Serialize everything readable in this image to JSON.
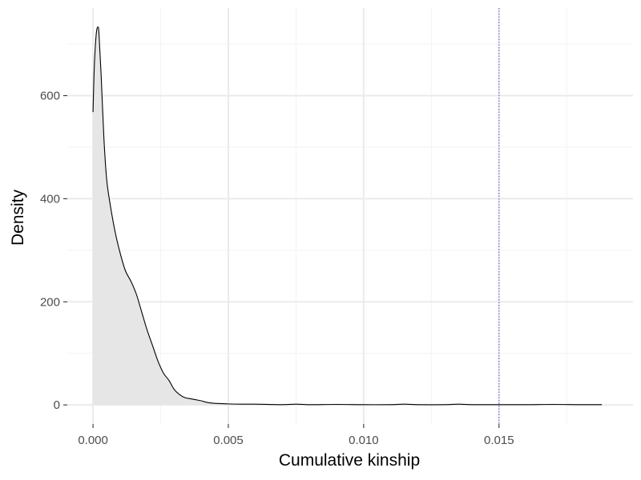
{
  "chart_data": {
    "type": "area",
    "xlabel": "Cumulative kinship",
    "ylabel": "Density",
    "xlim": [
      -0.00095,
      0.01995
    ],
    "ylim": [
      -37,
      770
    ],
    "x_ticks": [
      0.0,
      0.005,
      0.01,
      0.015
    ],
    "x_tick_labels": [
      "0.000",
      "0.005",
      "0.010",
      "0.015"
    ],
    "y_ticks": [
      0,
      200,
      400,
      600
    ],
    "y_tick_labels": [
      "0",
      "200",
      "400",
      "600"
    ],
    "grid": true,
    "reference_line": {
      "x": 0.015,
      "style": "dotted",
      "color": "#5d5dd1"
    },
    "colors": {
      "panel_background": "#ffffff",
      "grid_major": "#ebebeb",
      "grid_minor": "#f3f3f3",
      "fill": "#e6e6e6",
      "line": "#000000"
    },
    "series": [
      {
        "x": [
          0.0,
          5e-05,
          0.00012,
          0.00018,
          0.00022,
          0.0003,
          0.0004,
          0.0005,
          0.0006,
          0.0008,
          0.001,
          0.0012,
          0.0014,
          0.0016,
          0.0018,
          0.002,
          0.0022,
          0.0024,
          0.0026,
          0.0028,
          0.003,
          0.0032,
          0.0034,
          0.0036,
          0.0038,
          0.004,
          0.0042,
          0.0045,
          0.005,
          0.0055,
          0.006,
          0.007,
          0.0075,
          0.008,
          0.009,
          0.01,
          0.011,
          0.0115,
          0.012,
          0.013,
          0.0135,
          0.014,
          0.015,
          0.016,
          0.017,
          0.018,
          0.0188
        ],
        "y": [
          568,
          660,
          720,
          733,
          720,
          640,
          520,
          440,
          400,
          340,
          295,
          260,
          240,
          215,
          180,
          145,
          115,
          85,
          62,
          48,
          30,
          20,
          14,
          12,
          10,
          8,
          5,
          3,
          2,
          1.5,
          1.5,
          0.5,
          1.5,
          0.5,
          1,
          0.5,
          0.5,
          1.5,
          0.5,
          0.5,
          1.5,
          0.5,
          0.5,
          0.5,
          1,
          0.5,
          0.5
        ]
      }
    ]
  }
}
